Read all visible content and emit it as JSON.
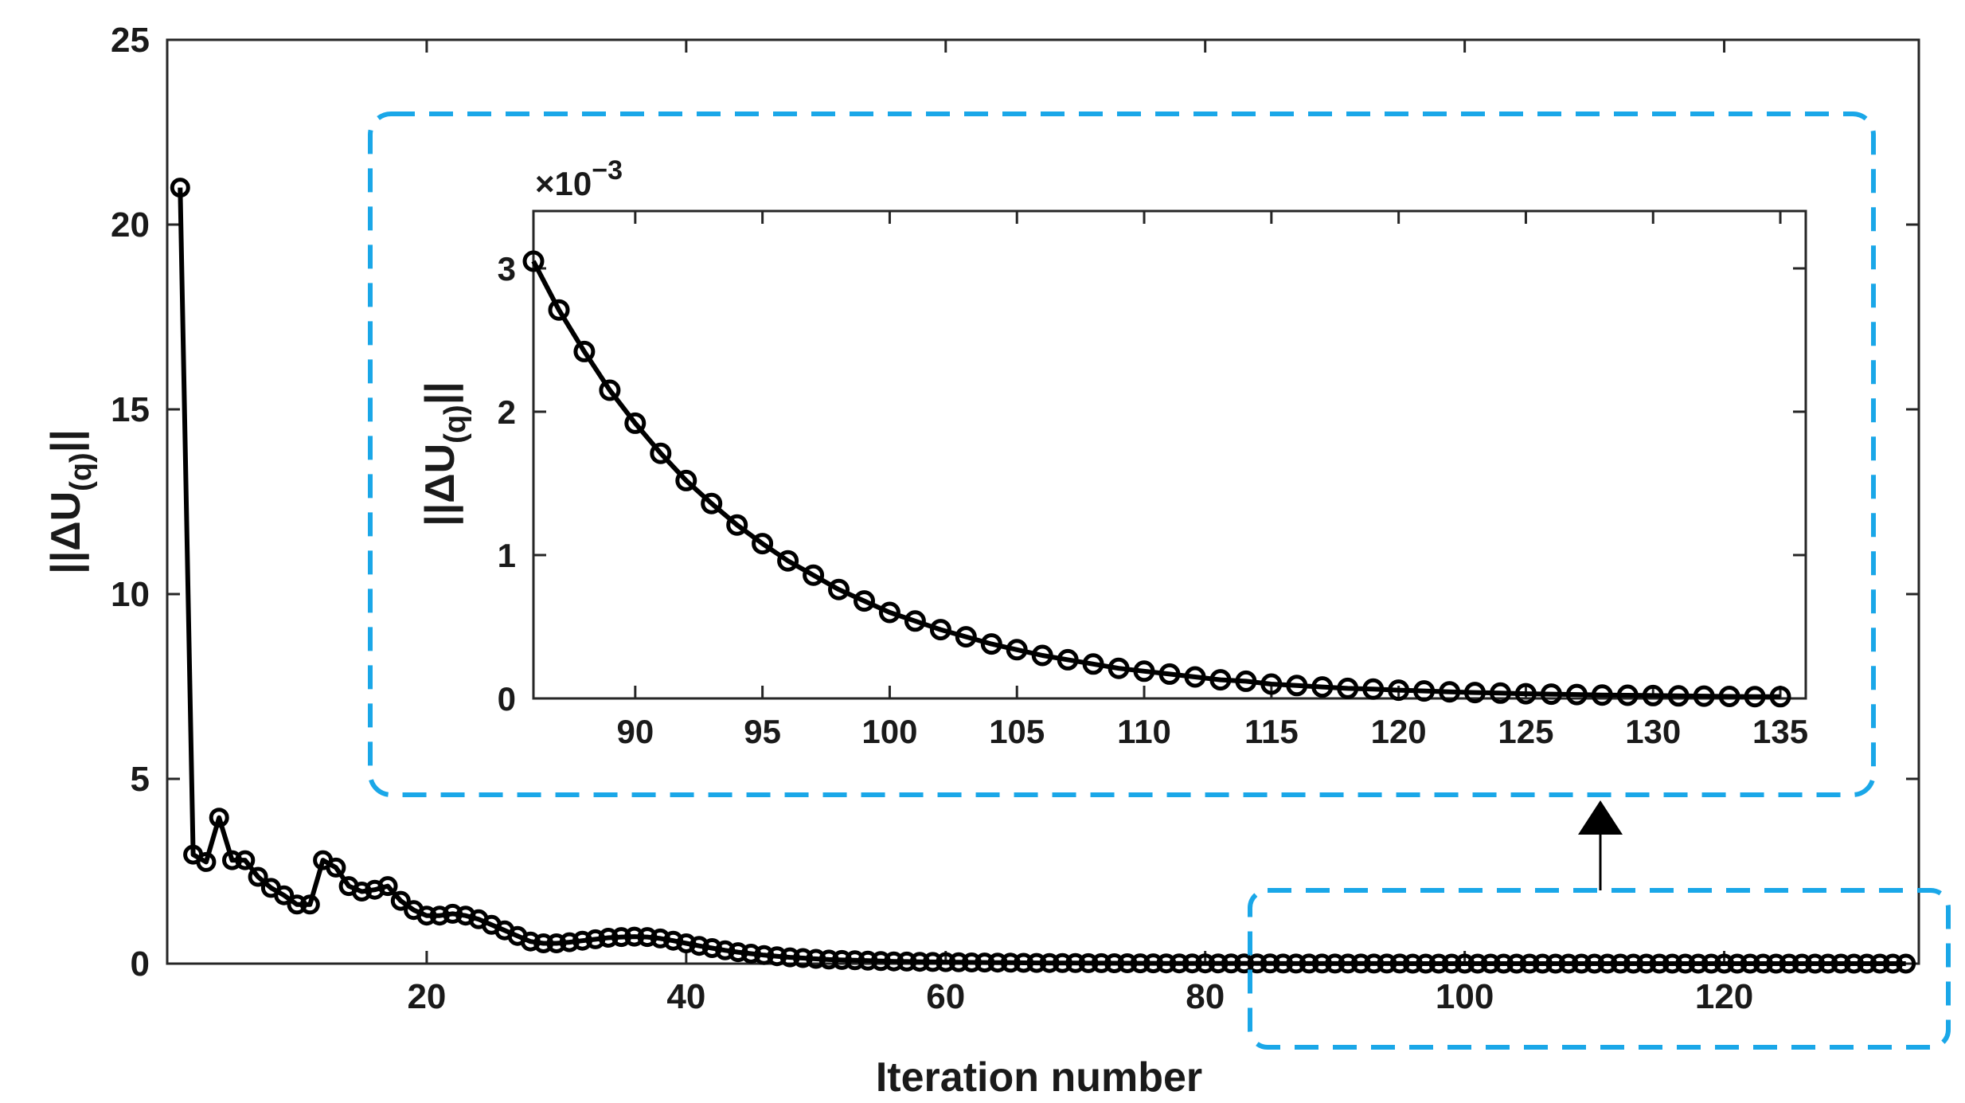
{
  "chart_data": [
    {
      "type": "line",
      "name": "main",
      "xlabel": "Iteration number",
      "ylabel": {
        "base": "||ΔU",
        "sub": "(q)",
        "tail": "||"
      },
      "xlim": [
        0,
        135
      ],
      "ylim": [
        0,
        25
      ],
      "xticks": [
        20,
        40,
        60,
        80,
        100,
        120
      ],
      "yticks": [
        0,
        5,
        10,
        15,
        20,
        25
      ],
      "x_start": 1,
      "values": [
        21.0,
        2.95,
        2.75,
        3.95,
        2.8,
        2.8,
        2.35,
        2.05,
        1.85,
        1.6,
        1.6,
        2.8,
        2.6,
        2.1,
        1.95,
        2.0,
        2.1,
        1.7,
        1.45,
        1.3,
        1.3,
        1.35,
        1.3,
        1.2,
        1.05,
        0.9,
        0.75,
        0.6,
        0.55,
        0.55,
        0.58,
        0.62,
        0.66,
        0.7,
        0.72,
        0.73,
        0.72,
        0.68,
        0.62,
        0.55,
        0.48,
        0.42,
        0.36,
        0.31,
        0.27,
        0.23,
        0.2,
        0.17,
        0.15,
        0.13,
        0.11,
        0.1,
        0.09,
        0.08,
        0.07,
        0.06,
        0.055,
        0.05,
        0.045,
        0.04,
        0.036,
        0.033,
        0.03,
        0.027,
        0.025,
        0.022,
        0.02,
        0.018,
        0.016,
        0.015,
        0.013,
        0.012,
        0.011,
        0.01,
        0.009,
        0.008,
        0.0075,
        0.007,
        0.0065,
        0.006,
        0.0055,
        0.005,
        0.0045,
        0.004,
        0.0035,
        0.0031,
        0.0027,
        0.0024,
        0.0021,
        0.0019,
        0.0017,
        0.0015,
        0.00135,
        0.0012,
        0.00108,
        0.00097,
        0.00087,
        0.00078,
        0.0007,
        0.00062,
        0.00055,
        0.0005,
        0.00044,
        0.0004,
        0.00036,
        0.00032,
        0.00029,
        0.00026,
        0.00023,
        0.00021,
        0.00019,
        0.00017,
        0.00015,
        0.00013,
        0.00012,
        0.00011,
        0.0001,
        9e-05,
        8e-05,
        7e-05,
        6e-05,
        5e-05,
        5e-05,
        4e-05,
        4e-05,
        3e-05,
        3e-05,
        3e-05,
        2e-05,
        2e-05,
        2e-05,
        2e-05,
        1e-05,
        1e-05
      ]
    },
    {
      "type": "line",
      "name": "inset",
      "ylabel": {
        "base": "||ΔU",
        "sub": "(q)",
        "tail": "||"
      },
      "y_scale_label": {
        "base": "×10",
        "exp": "−3"
      },
      "xlim": [
        86,
        136
      ],
      "ylim": [
        0,
        3.4
      ],
      "xticks": [
        90,
        95,
        100,
        105,
        110,
        115,
        120,
        125,
        130,
        135
      ],
      "yticks": [
        0,
        1,
        2,
        3
      ],
      "x_start": 86,
      "values": [
        3.05,
        2.71,
        2.42,
        2.15,
        1.92,
        1.71,
        1.52,
        1.36,
        1.21,
        1.08,
        0.96,
        0.86,
        0.76,
        0.68,
        0.6,
        0.54,
        0.48,
        0.43,
        0.38,
        0.34,
        0.3,
        0.27,
        0.24,
        0.21,
        0.19,
        0.17,
        0.15,
        0.13,
        0.12,
        0.1,
        0.09,
        0.08,
        0.07,
        0.065,
        0.058,
        0.052,
        0.046,
        0.041,
        0.037,
        0.033,
        0.03,
        0.027,
        0.024,
        0.022,
        0.02,
        0.018,
        0.016,
        0.014,
        0.013,
        0.012
      ]
    }
  ],
  "colors": {
    "line": "#000000",
    "highlight": "#1aa7e8"
  }
}
